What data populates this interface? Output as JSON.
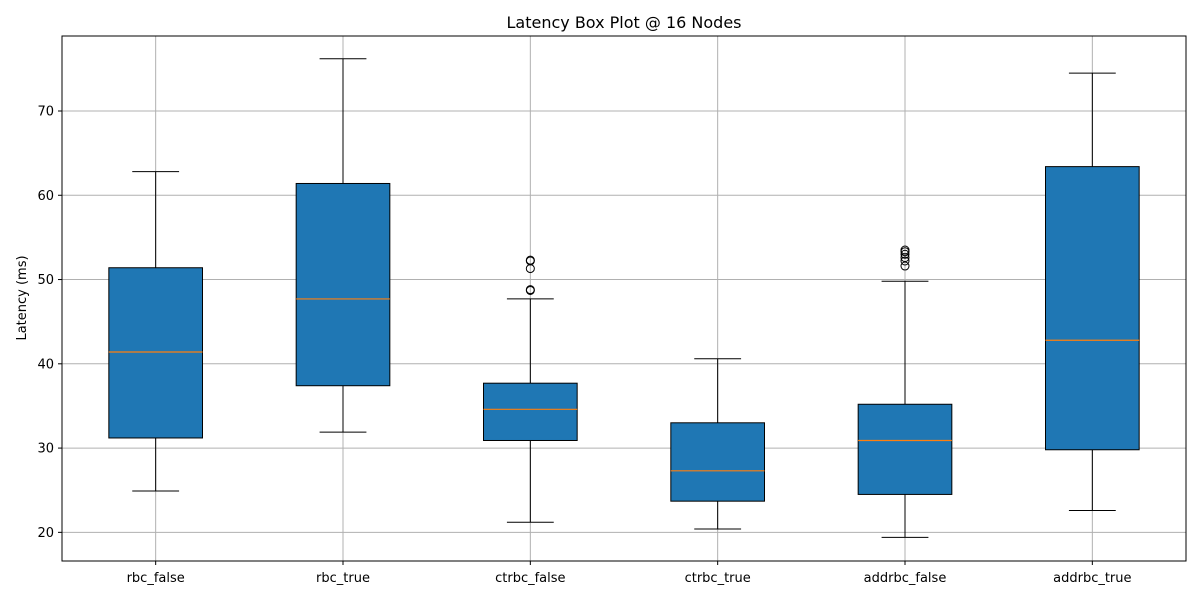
{
  "chart_data": {
    "type": "box",
    "title": "Latency Box Plot @ 16 Nodes",
    "xlabel": "",
    "ylabel": "Latency (ms)",
    "ylim": [
      16.6,
      78.9
    ],
    "yticks": [
      20,
      30,
      40,
      50,
      60,
      70
    ],
    "grid": true,
    "colors": {
      "box_fill": "#1f77b4",
      "median": "#ff7f0e",
      "grid": "#b0b0b0"
    },
    "categories": [
      "rbc_false",
      "rbc_true",
      "ctrbc_false",
      "ctrbc_true",
      "addrbc_false",
      "addrbc_true"
    ],
    "boxes": [
      {
        "category": "rbc_false",
        "whisker_low": 24.9,
        "q1": 31.2,
        "median": 41.4,
        "q3": 51.4,
        "whisker_high": 62.8,
        "fliers": []
      },
      {
        "category": "rbc_true",
        "whisker_low": 31.9,
        "q1": 37.4,
        "median": 47.7,
        "q3": 61.4,
        "whisker_high": 76.2,
        "fliers": []
      },
      {
        "category": "ctrbc_false",
        "whisker_low": 21.2,
        "q1": 30.9,
        "median": 34.6,
        "q3": 37.7,
        "whisker_high": 47.7,
        "fliers": [
          48.7,
          48.8,
          51.3,
          52.2,
          52.3
        ]
      },
      {
        "category": "ctrbc_true",
        "whisker_low": 20.4,
        "q1": 23.7,
        "median": 27.3,
        "q3": 33.0,
        "whisker_high": 40.6,
        "fliers": []
      },
      {
        "category": "addrbc_false",
        "whisker_low": 19.4,
        "q1": 24.5,
        "median": 30.9,
        "q3": 35.2,
        "whisker_high": 49.8,
        "fliers": [
          51.6,
          52.2,
          52.6,
          53.0,
          53.3,
          53.5
        ]
      },
      {
        "category": "addrbc_true",
        "whisker_low": 22.6,
        "q1": 29.8,
        "median": 42.8,
        "q3": 63.4,
        "whisker_high": 74.5,
        "fliers": []
      }
    ]
  }
}
